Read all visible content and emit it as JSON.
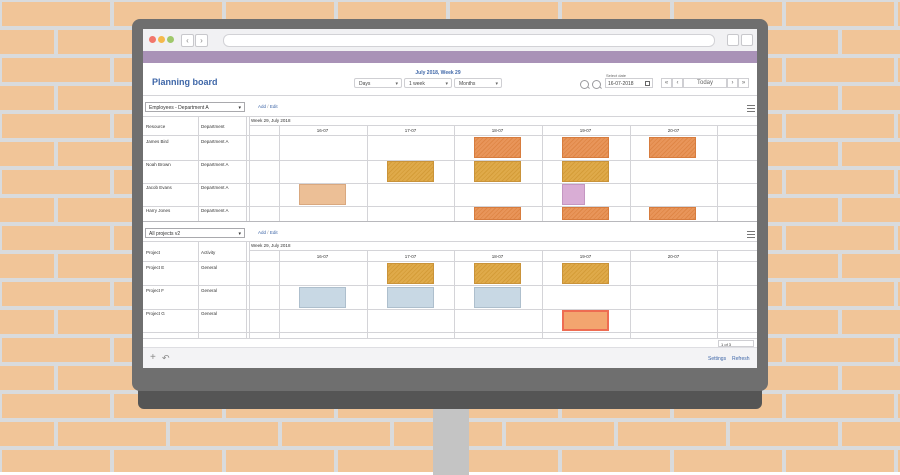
{
  "app": {
    "title": "Planning board",
    "week_label": "July 2018, Week 29",
    "view_selects": [
      "Days",
      "1 week",
      "Months"
    ],
    "select_date_label": "Select date",
    "select_date_value": "16-07-2018",
    "today_label": "Today",
    "pager_first": "«",
    "pager_prev": "‹",
    "pager_next": "›",
    "pager_last": "»"
  },
  "resource_section": {
    "filter": "Employees - Department A",
    "add_label": "Add",
    "sep": "/",
    "edit_label": "Edit",
    "week_header": "Week 29, July 2018",
    "col1": "Resource",
    "col2": "Department",
    "days": [
      "16-07",
      "17-07",
      "18-07",
      "19-07",
      "20-07"
    ],
    "rows": [
      {
        "c1": "James Bird",
        "c2": "Department A"
      },
      {
        "c1": "Noah Brown",
        "c2": "Department A"
      },
      {
        "c1": "Jacob Evans",
        "c2": "Department A"
      },
      {
        "c1": "Harry Jones",
        "c2": "Department A"
      }
    ]
  },
  "project_section": {
    "filter": "All projects v2",
    "add_label": "Add",
    "sep": "/",
    "edit_label": "Edit",
    "week_header": "Week 29, July 2018",
    "col1": "Project",
    "col2": "Activity",
    "days": [
      "16-07",
      "17-07",
      "18-07",
      "19-07",
      "20-07"
    ],
    "rows": [
      {
        "c1": "Project E",
        "c2": "General"
      },
      {
        "c1": "Project F",
        "c2": "General"
      },
      {
        "c1": "Project G",
        "c2": "General"
      }
    ]
  },
  "pagination": {
    "page": "1",
    "of_label": "of 3"
  },
  "footer": {
    "settings_label": "Settings",
    "refresh_label": "Refresh"
  },
  "colors": {
    "orange_bar": "#e8955a",
    "mustard_bar": "#dfaa4a",
    "peach_bar": "#ecbf96",
    "lilac_bar": "#d9add5",
    "blue_bar": "#c8d8e4",
    "salmon_bar": "#f3a56f",
    "title_blue": "#3f67a8",
    "purple_band": "#a992b7"
  }
}
